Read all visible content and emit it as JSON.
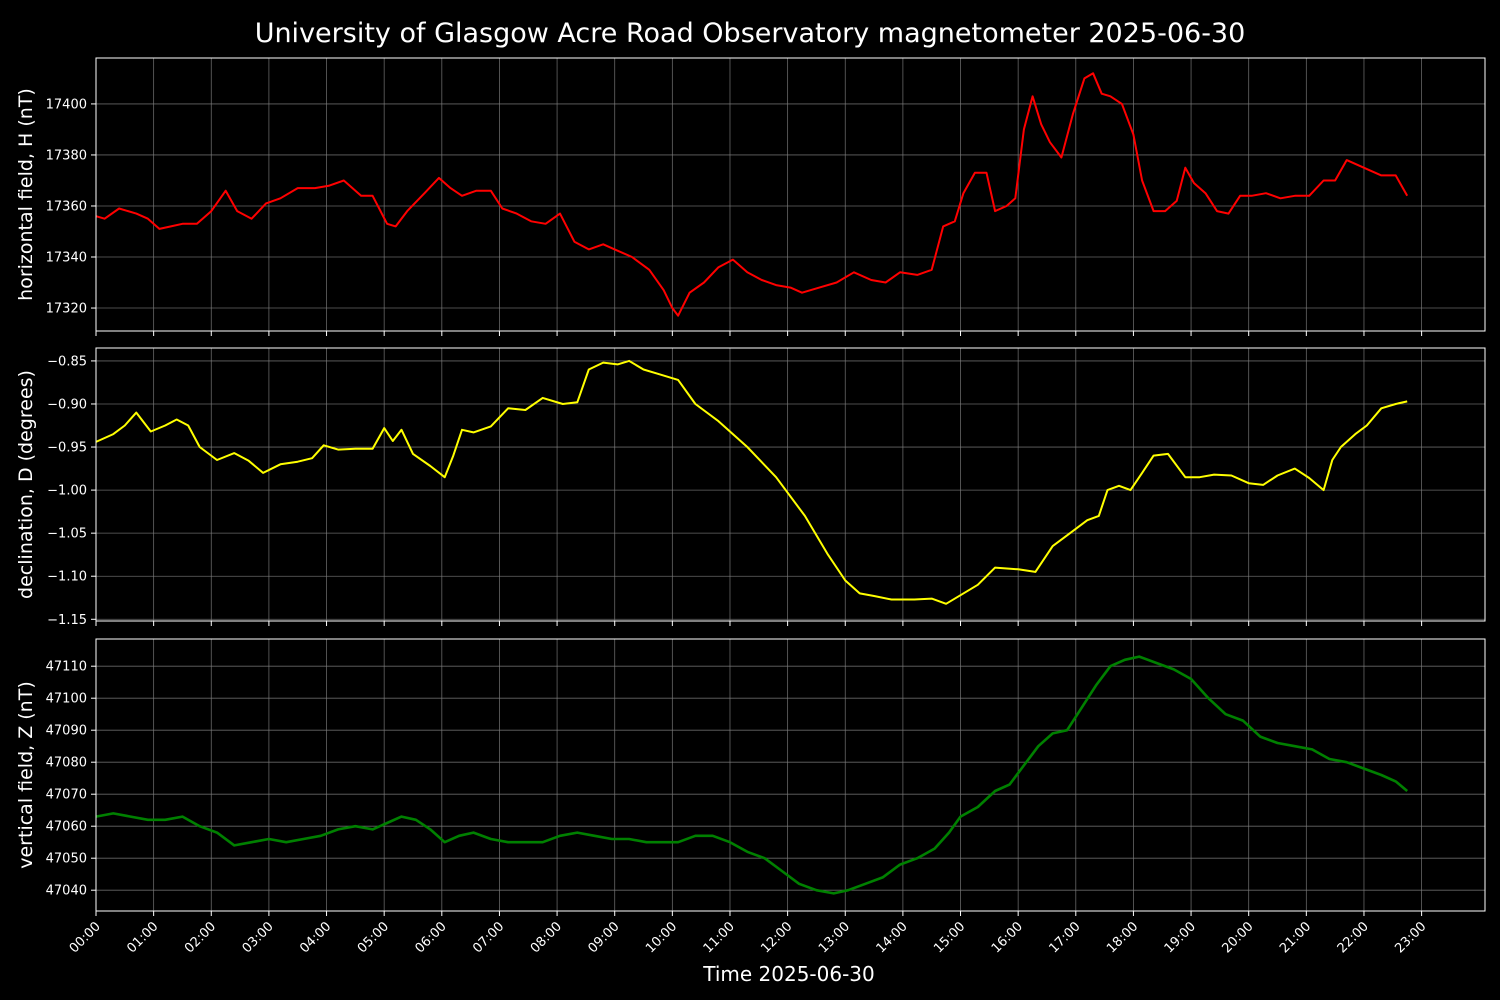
{
  "figure": {
    "title": "University of Glasgow Acre Road Observatory magnetometer 2025-06-30",
    "xlabel": "Time 2025-06-30",
    "x_tick_labels": [
      "00:00",
      "01:00",
      "02:00",
      "03:00",
      "04:00",
      "05:00",
      "06:00",
      "07:00",
      "08:00",
      "09:00",
      "10:00",
      "11:00",
      "12:00",
      "13:00",
      "14:00",
      "15:00",
      "16:00",
      "17:00",
      "18:00",
      "19:00",
      "20:00",
      "21:00",
      "22:00",
      "23:00"
    ]
  },
  "chart_data": [
    {
      "type": "line",
      "ylabel": "horizontal field, H (nT)",
      "color": "#ff0000",
      "grid": true,
      "xlim": [
        0,
        24.1
      ],
      "ylim": [
        17311,
        17418
      ],
      "yticks": [
        17320,
        17340,
        17360,
        17380,
        17400
      ],
      "series": [
        {
          "x": [
            0,
            0.15,
            0.4,
            0.7,
            0.9,
            1.1,
            1.3,
            1.5,
            1.75,
            2.0,
            2.25,
            2.45,
            2.7,
            2.95,
            3.2,
            3.5,
            3.8,
            4.05,
            4.3,
            4.6,
            4.8,
            5.05,
            5.2,
            5.4,
            5.7,
            5.95,
            6.15,
            6.35,
            6.6,
            6.85,
            7.05,
            7.3,
            7.55,
            7.8,
            8.05,
            8.3,
            8.55,
            8.8,
            9.0,
            9.3,
            9.6,
            9.85,
            10.0,
            10.1,
            10.3,
            10.55,
            10.8,
            11.05,
            11.3,
            11.55,
            11.8,
            12.05,
            12.25,
            12.55,
            12.85,
            13.15,
            13.45,
            13.7,
            13.95,
            14.25,
            14.5,
            14.7,
            14.9,
            15.05,
            15.25,
            15.45,
            15.6,
            15.8,
            15.95,
            16.1,
            16.25,
            16.4,
            16.55,
            16.75,
            16.95,
            17.15,
            17.3,
            17.45,
            17.6,
            17.8,
            18.0,
            18.15,
            18.35,
            18.55,
            18.75,
            18.9,
            19.05,
            19.25,
            19.45,
            19.65,
            19.85,
            20.05,
            20.3,
            20.55,
            20.8,
            21.05,
            21.3,
            21.5,
            21.7,
            21.9,
            22.1,
            22.3,
            22.55,
            22.75
          ],
          "y": [
            17356,
            17355,
            17359,
            17357,
            17355,
            17351,
            17352,
            17353,
            17353,
            17358,
            17366,
            17358,
            17355,
            17361,
            17363,
            17367,
            17367,
            17368,
            17370,
            17364,
            17364,
            17353,
            17352,
            17358,
            17365,
            17371,
            17367,
            17364,
            17366,
            17366,
            17359,
            17357,
            17354,
            17353,
            17357,
            17346,
            17343,
            17345,
            17343,
            17340,
            17335,
            17327,
            17320,
            17317,
            17326,
            17330,
            17336,
            17339,
            17334,
            17331,
            17329,
            17328,
            17326,
            17328,
            17330,
            17334,
            17331,
            17330,
            17334,
            17333,
            17335,
            17352,
            17354,
            17365,
            17373,
            17373,
            17358,
            17360,
            17363,
            17390,
            17403,
            17392,
            17385,
            17379,
            17396,
            17410,
            17412,
            17404,
            17403,
            17400,
            17388,
            17370,
            17358,
            17358,
            17362,
            17375,
            17369,
            17365,
            17358,
            17357,
            17364,
            17364,
            17365,
            17363,
            17364,
            17364,
            17370,
            17370,
            17378,
            17376,
            17374,
            17372,
            17372,
            17364
          ]
        }
      ]
    },
    {
      "type": "line",
      "ylabel": "declination, D (degrees)",
      "color": "#ffff00",
      "grid": true,
      "xlim": [
        0,
        24.1
      ],
      "ylim": [
        -1.152,
        -0.835
      ],
      "yticks": [
        -0.85,
        -0.9,
        -0.95,
        -1.0,
        -1.05,
        -1.1,
        -1.15
      ],
      "ytick_labels": [
        "−0.85",
        "−0.90",
        "−0.95",
        "−1.00",
        "−1.05",
        "−1.10",
        "−1.15"
      ],
      "series": [
        {
          "x": [
            0,
            0.3,
            0.5,
            0.7,
            0.95,
            1.2,
            1.4,
            1.6,
            1.8,
            2.1,
            2.4,
            2.65,
            2.9,
            3.2,
            3.5,
            3.75,
            3.95,
            4.2,
            4.5,
            4.8,
            5.0,
            5.15,
            5.3,
            5.5,
            5.8,
            6.05,
            6.2,
            6.35,
            6.55,
            6.85,
            7.15,
            7.45,
            7.75,
            8.1,
            8.35,
            8.55,
            8.8,
            9.05,
            9.25,
            9.5,
            9.75,
            10.1,
            10.4,
            10.8,
            11.3,
            11.8,
            12.3,
            12.7,
            13.0,
            13.25,
            13.5,
            13.8,
            14.2,
            14.5,
            14.75,
            15.0,
            15.3,
            15.6,
            16.0,
            16.3,
            16.6,
            16.9,
            17.2,
            17.4,
            17.55,
            17.75,
            17.95,
            18.15,
            18.35,
            18.6,
            18.9,
            19.15,
            19.4,
            19.7,
            20.0,
            20.25,
            20.5,
            20.8,
            21.05,
            21.3,
            21.45,
            21.6,
            21.85,
            22.05,
            22.3,
            22.55,
            22.75
          ],
          "y": [
            -0.944,
            -0.935,
            -0.925,
            -0.91,
            -0.932,
            -0.925,
            -0.918,
            -0.925,
            -0.95,
            -0.965,
            -0.957,
            -0.966,
            -0.98,
            -0.97,
            -0.967,
            -0.963,
            -0.948,
            -0.953,
            -0.952,
            -0.952,
            -0.928,
            -0.943,
            -0.93,
            -0.958,
            -0.972,
            -0.985,
            -0.96,
            -0.93,
            -0.933,
            -0.926,
            -0.905,
            -0.907,
            -0.893,
            -0.9,
            -0.898,
            -0.86,
            -0.852,
            -0.854,
            -0.85,
            -0.86,
            -0.865,
            -0.872,
            -0.9,
            -0.92,
            -0.95,
            -0.985,
            -1.03,
            -1.075,
            -1.105,
            -1.12,
            -1.123,
            -1.127,
            -1.127,
            -1.126,
            -1.132,
            -1.122,
            -1.11,
            -1.09,
            -1.092,
            -1.095,
            -1.065,
            -1.05,
            -1.035,
            -1.03,
            -1.0,
            -0.995,
            -1.0,
            -0.98,
            -0.96,
            -0.958,
            -0.985,
            -0.985,
            -0.982,
            -0.983,
            -0.992,
            -0.994,
            -0.983,
            -0.975,
            -0.986,
            -1.0,
            -0.965,
            -0.95,
            -0.935,
            -0.925,
            -0.905,
            -0.9,
            -0.897
          ]
        }
      ]
    },
    {
      "type": "line",
      "ylabel": "vertical field, Z (nT)",
      "color": "#008000",
      "grid": true,
      "xlim": [
        0,
        24.1
      ],
      "ylim": [
        47033.5,
        47118.5
      ],
      "yticks": [
        47040,
        47050,
        47060,
        47070,
        47080,
        47090,
        47100,
        47110
      ],
      "series": [
        {
          "x": [
            0,
            0.3,
            0.6,
            0.9,
            1.2,
            1.5,
            1.8,
            2.1,
            2.4,
            2.7,
            3.0,
            3.3,
            3.6,
            3.9,
            4.2,
            4.5,
            4.8,
            5.05,
            5.3,
            5.55,
            5.8,
            6.05,
            6.3,
            6.55,
            6.85,
            7.15,
            7.45,
            7.75,
            8.05,
            8.35,
            8.65,
            8.95,
            9.25,
            9.55,
            9.85,
            10.1,
            10.4,
            10.7,
            11.0,
            11.3,
            11.6,
            11.9,
            12.2,
            12.5,
            12.8,
            13.05,
            13.35,
            13.65,
            13.95,
            14.25,
            14.55,
            14.8,
            15.0,
            15.3,
            15.6,
            15.85,
            16.1,
            16.35,
            16.6,
            16.85,
            17.1,
            17.35,
            17.6,
            17.85,
            18.1,
            18.4,
            18.7,
            19.0,
            19.3,
            19.6,
            19.9,
            20.2,
            20.5,
            20.8,
            21.1,
            21.4,
            21.7,
            22.0,
            22.3,
            22.55,
            22.75
          ],
          "y": [
            47063,
            47064,
            47063,
            47062,
            47062,
            47063,
            47060,
            47058,
            47054,
            47055,
            47056,
            47055,
            47056,
            47057,
            47059,
            47060,
            47059,
            47061,
            47063,
            47062,
            47059,
            47055,
            47057,
            47058,
            47056,
            47055,
            47055,
            47055,
            47057,
            47058,
            47057,
            47056,
            47056,
            47055,
            47055,
            47055,
            47057,
            47057,
            47055,
            47052,
            47050,
            47046,
            47042,
            47040,
            47039,
            47040,
            47042,
            47044,
            47048,
            47050,
            47053,
            47058,
            47063,
            47066,
            47071,
            47073,
            47079,
            47085,
            47089,
            47090,
            47097,
            47104,
            47110,
            47112,
            47113,
            47111,
            47109,
            47106,
            47100,
            47095,
            47093,
            47088,
            47086,
            47085,
            47084,
            47081,
            47080,
            47078,
            47076,
            47074,
            47071
          ]
        }
      ]
    }
  ]
}
